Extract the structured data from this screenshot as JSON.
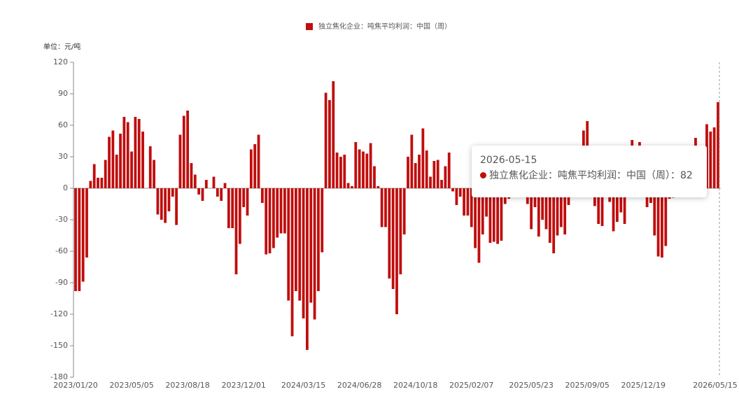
{
  "chart_data": {
    "type": "bar",
    "legend": "独立焦化企业：吨焦平均利润：中国（周）",
    "unit_label": "单位：元/吨",
    "categories": [
      "2023/01/20",
      null,
      null,
      null,
      null,
      null,
      null,
      null,
      null,
      null,
      null,
      null,
      null,
      null,
      null,
      "2023/05/05",
      null,
      null,
      null,
      null,
      null,
      null,
      null,
      null,
      null,
      null,
      null,
      null,
      null,
      null,
      "2023/08/18",
      null,
      null,
      null,
      null,
      null,
      null,
      null,
      null,
      null,
      null,
      null,
      null,
      null,
      null,
      "2023/12/01",
      null,
      null,
      null,
      null,
      null,
      null,
      null,
      null,
      null,
      null,
      null,
      null,
      null,
      null,
      null,
      "2024/03/15",
      null,
      null,
      null,
      null,
      null,
      null,
      null,
      null,
      null,
      null,
      null,
      null,
      null,
      null,
      "2024/06/28",
      null,
      null,
      null,
      null,
      null,
      null,
      null,
      null,
      null,
      null,
      null,
      null,
      null,
      null,
      "2024/10/18",
      null,
      null,
      null,
      null,
      null,
      null,
      null,
      null,
      null,
      null,
      null,
      null,
      null,
      null,
      "2025/02/07",
      null,
      null,
      null,
      null,
      null,
      null,
      null,
      null,
      null,
      null,
      null,
      null,
      null,
      null,
      null,
      "2025/05/23",
      null,
      null,
      null,
      null,
      null,
      null,
      null,
      null,
      null,
      null,
      null,
      null,
      null,
      null,
      "2025/09/05",
      null,
      null,
      null,
      null,
      null,
      null,
      null,
      null,
      null,
      null,
      null,
      null,
      null,
      null,
      "2025/12/19",
      null,
      null,
      null,
      null,
      null,
      null,
      null,
      null,
      null,
      null,
      null,
      null,
      null,
      null,
      null,
      null,
      null,
      null,
      null,
      "2026/05/15"
    ],
    "series": [
      {
        "name": "独立焦化企业：吨焦平均利润：中国（周）",
        "color": "#c00d0d",
        "values": [
          -98,
          -98,
          -89,
          -66,
          7,
          23,
          10,
          10,
          27,
          49,
          55,
          32,
          52,
          68,
          63,
          35,
          68,
          66,
          54,
          0,
          40,
          27,
          -25,
          -30,
          -33,
          -22,
          -8,
          -35,
          51,
          69,
          74,
          24,
          13,
          -6,
          -12,
          8,
          0,
          11,
          -8,
          -12,
          5,
          -38,
          -38,
          -82,
          -53,
          -18,
          -26,
          37,
          42,
          51,
          -14,
          -63,
          -62,
          -57,
          -47,
          -43,
          -43,
          -107,
          -141,
          -98,
          -107,
          -124,
          -154,
          -109,
          -125,
          -98,
          -61,
          91,
          84,
          102,
          34,
          30,
          32,
          5,
          2,
          44,
          37,
          35,
          33,
          43,
          21,
          2,
          -37,
          -37,
          -86,
          -96,
          -120,
          -82,
          -44,
          30,
          51,
          24,
          32,
          57,
          36,
          11,
          26,
          27,
          8,
          21,
          34,
          -3,
          -16,
          -8,
          -26,
          -26,
          -37,
          -57,
          -71,
          -44,
          -27,
          -52,
          -51,
          -53,
          -50,
          -15,
          -10,
          -6,
          10,
          15,
          -3,
          -15,
          -39,
          -18,
          -46,
          -30,
          -39,
          -52,
          -62,
          -45,
          -37,
          -44,
          -16,
          20,
          25,
          30,
          55,
          64,
          20,
          -17,
          -34,
          -36,
          15,
          -13,
          -41,
          -32,
          -23,
          -34,
          20,
          46,
          25,
          44,
          10,
          -18,
          -14,
          -45,
          -65,
          -66,
          -55,
          -10,
          -9,
          -6,
          5,
          -3,
          20,
          30,
          48,
          30,
          25,
          61,
          54,
          58,
          82
        ]
      }
    ],
    "ylim": [
      -180,
      120
    ],
    "yticks": [
      -180,
      -150,
      -120,
      -90,
      -60,
      -30,
      0,
      30,
      60,
      90,
      120
    ],
    "tooltip": {
      "title": "2026-05-15",
      "separator": "："
    }
  }
}
